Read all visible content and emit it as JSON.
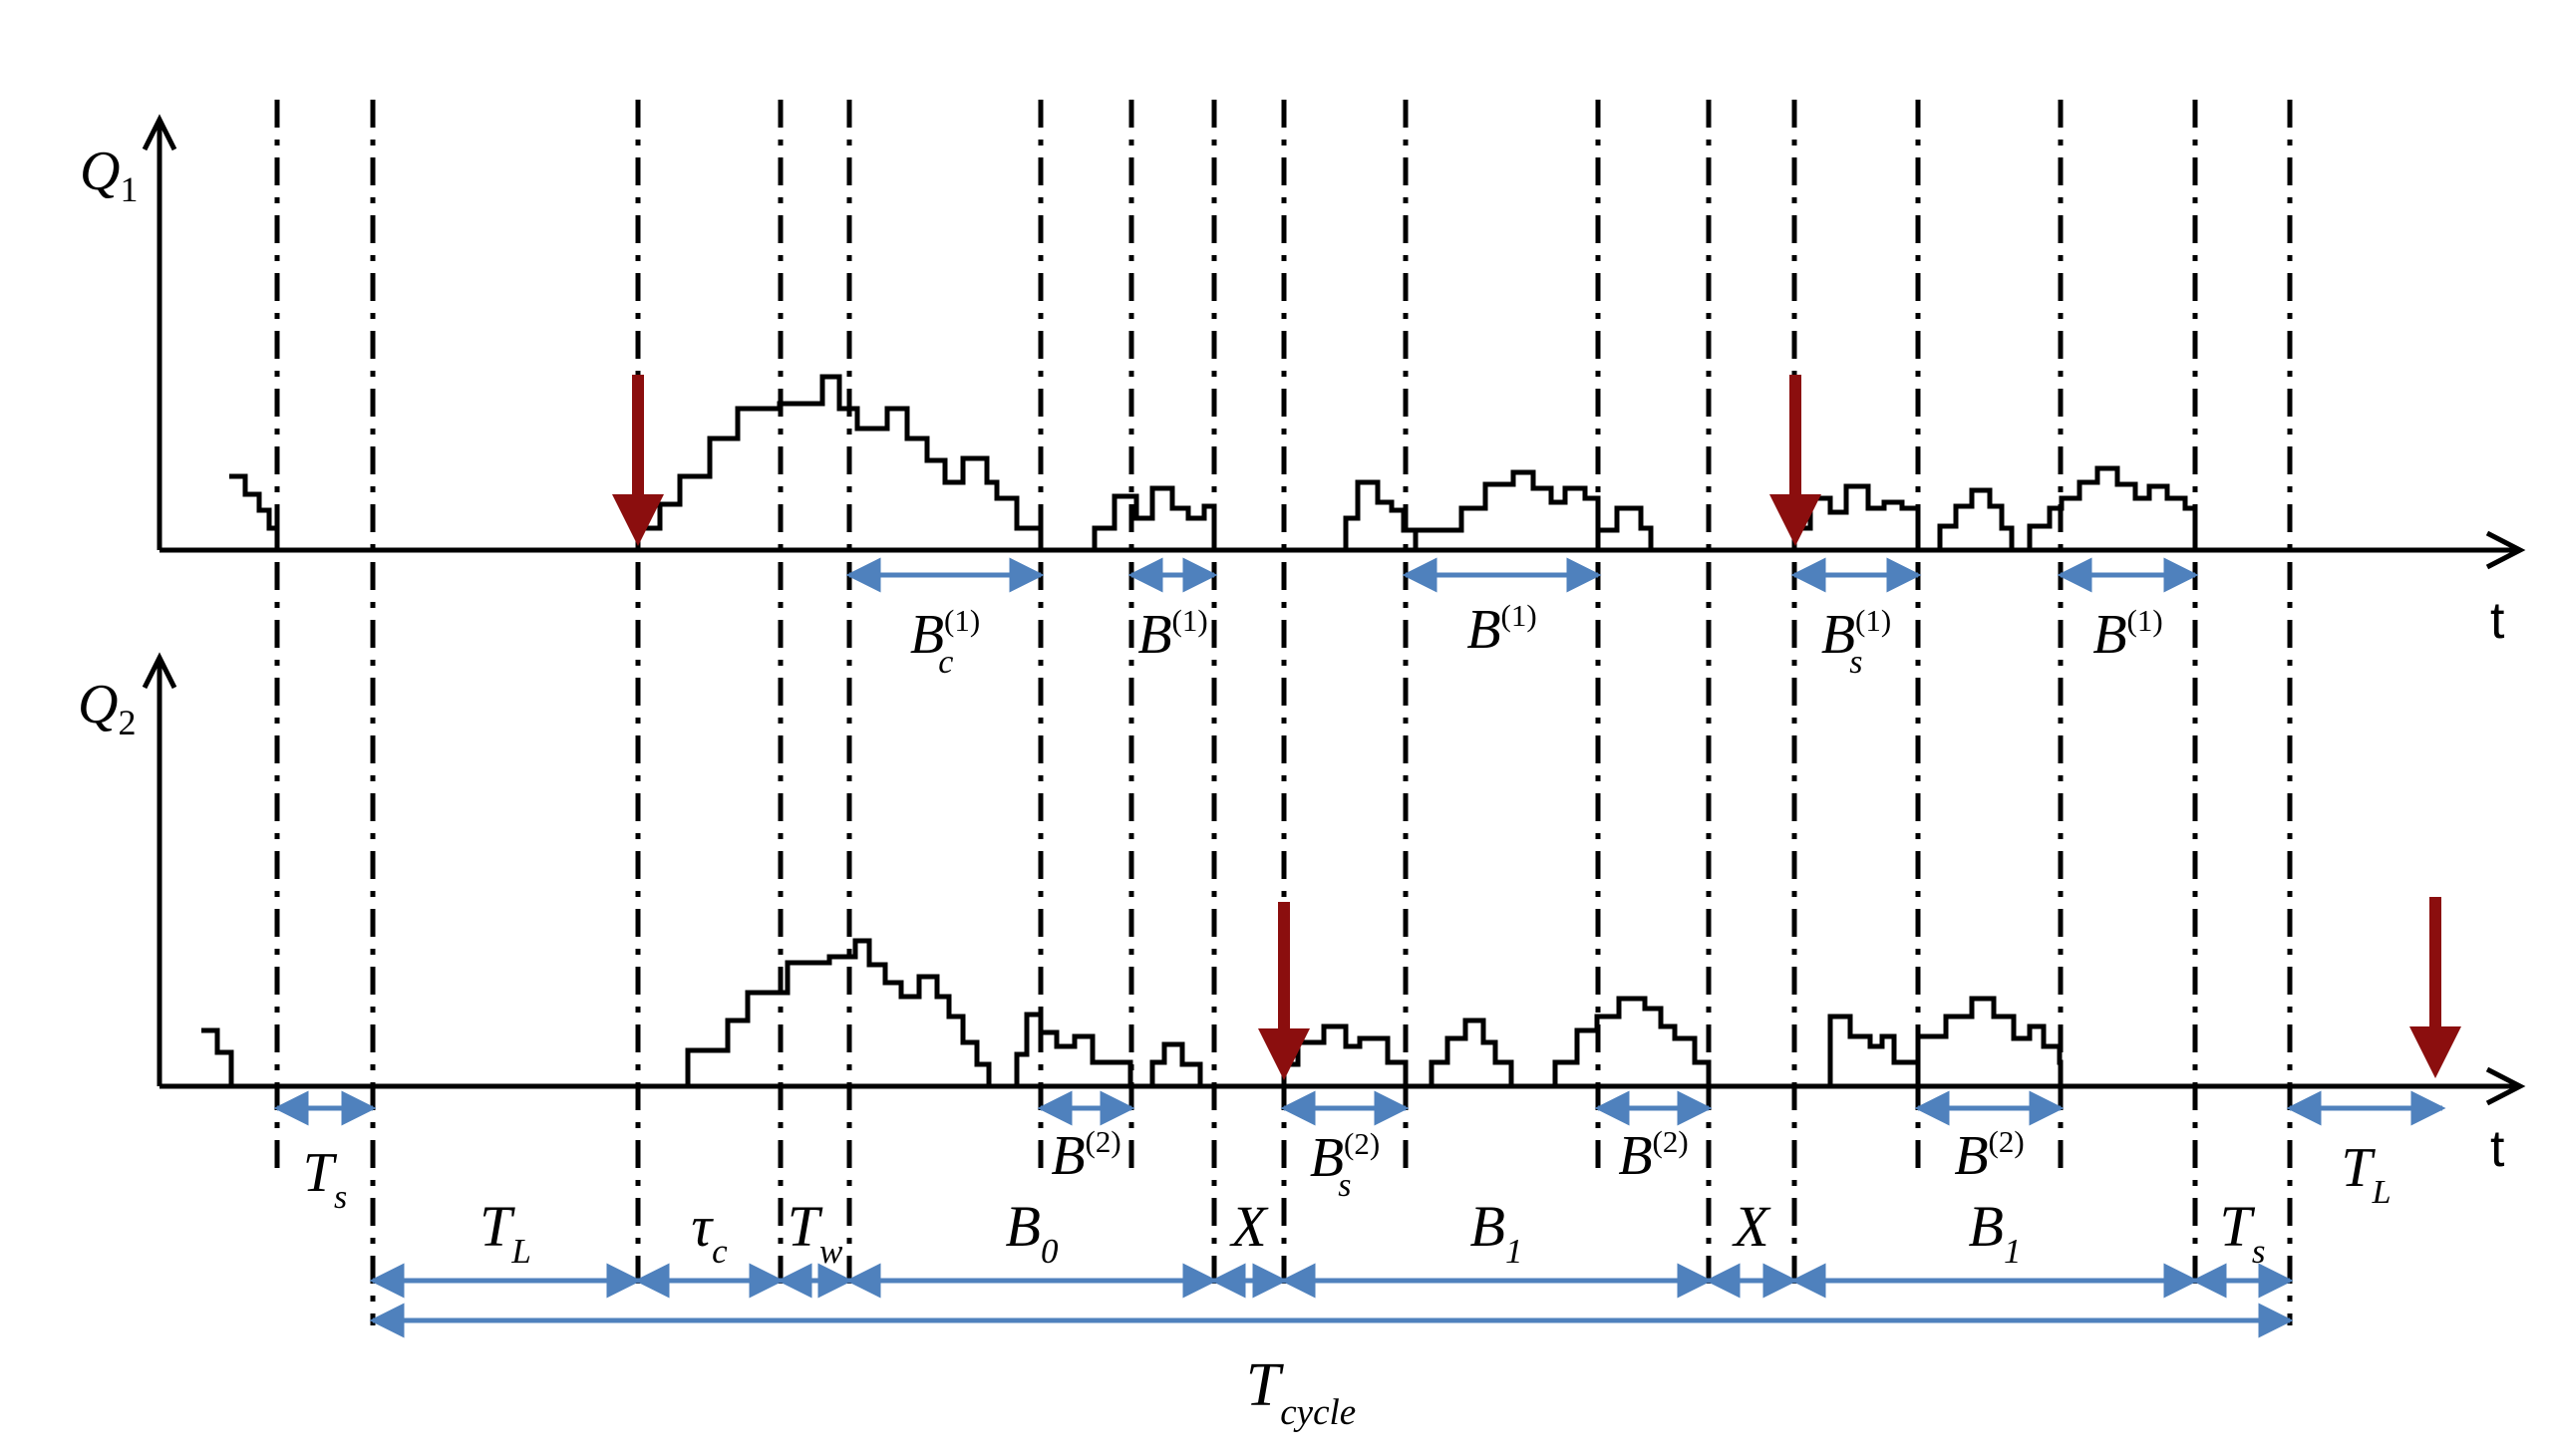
{
  "axes": {
    "q1": {
      "label": "Q",
      "sub": "1",
      "time_label": "t"
    },
    "q2": {
      "label": "Q",
      "sub": "2",
      "time_label": "t"
    }
  },
  "colors": {
    "interval_arrow": "#4f81bd",
    "event_arrow": "#8b0e0e",
    "line": "#000000"
  },
  "q1_intervals": [
    {
      "base": "B",
      "sub": "c",
      "sup": "(1)"
    },
    {
      "base": "B",
      "sub": "",
      "sup": "(1)"
    },
    {
      "base": "B",
      "sub": "",
      "sup": "(1)"
    },
    {
      "base": "B",
      "sub": "s",
      "sup": "(1)"
    },
    {
      "base": "B",
      "sub": "",
      "sup": "(1)"
    }
  ],
  "q2_intervals": [
    {
      "base": "T",
      "sub": "s",
      "sup": ""
    },
    {
      "base": "B",
      "sub": "",
      "sup": "(2)"
    },
    {
      "base": "B",
      "sub": "s",
      "sup": "(2)"
    },
    {
      "base": "B",
      "sub": "",
      "sup": "(2)"
    },
    {
      "base": "B",
      "sub": "",
      "sup": "(2)"
    },
    {
      "base": "T",
      "sub": "L",
      "sup": ""
    }
  ],
  "cycle_intervals": [
    {
      "base": "T",
      "sub": "L"
    },
    {
      "base": "τ",
      "sub": "c"
    },
    {
      "base": "T",
      "sub": "w"
    },
    {
      "base": "B",
      "sub": "0"
    },
    {
      "base": "X",
      "sub": ""
    },
    {
      "base": "B",
      "sub": "1"
    },
    {
      "base": "X",
      "sub": ""
    },
    {
      "base": "B",
      "sub": "1"
    },
    {
      "base": "T",
      "sub": "s"
    }
  ],
  "total": {
    "base": "T",
    "sub": "cycle"
  }
}
